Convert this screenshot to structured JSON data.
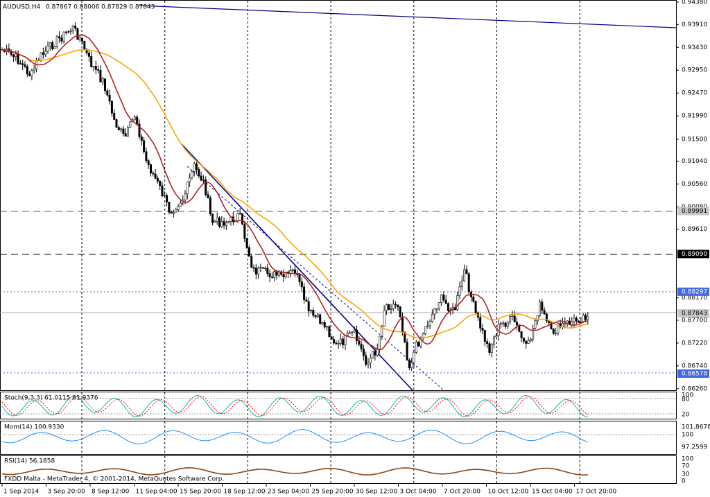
{
  "header": {
    "symbol": "AUDUSD,H4",
    "quote": "0.87867 0.88006 0.87829 0.87843"
  },
  "price_axis": [
    {
      "value": 0.9438,
      "label": "0.94380"
    },
    {
      "value": 0.9391,
      "label": "0.93910"
    },
    {
      "value": 0.9343,
      "label": "0.93430"
    },
    {
      "value": 0.9295,
      "label": "0.92950"
    },
    {
      "value": 0.9247,
      "label": "0.92470"
    },
    {
      "value": 0.9199,
      "label": "0.91990"
    },
    {
      "value": 0.915,
      "label": "0.91500"
    },
    {
      "value": 0.9104,
      "label": "0.91040"
    },
    {
      "value": 0.9056,
      "label": "0.90560"
    },
    {
      "value": 0.9008,
      "label": "0.90080"
    },
    {
      "value": 0.8961,
      "label": "0.89610"
    },
    {
      "value": 0.8817,
      "label": "0.88170"
    },
    {
      "value": 0.877,
      "label": "0.87700"
    },
    {
      "value": 0.8722,
      "label": "0.87220"
    },
    {
      "value": 0.8674,
      "label": "0.86740"
    },
    {
      "value": 0.8626,
      "label": "0.86260"
    }
  ],
  "price_markers": [
    {
      "value": 0.89991,
      "label": "0.89991",
      "style": "grey"
    },
    {
      "value": 0.8909,
      "label": "0.89090",
      "style": "black"
    },
    {
      "value": 0.88297,
      "label": "0.88297",
      "style": "blue"
    },
    {
      "value": 0.87843,
      "label": "0.87843",
      "style": "grey"
    },
    {
      "value": 0.86578,
      "label": "0.86578",
      "style": "blue"
    }
  ],
  "time_axis": [
    "1 Sep 2014",
    "3 Sep 20:00",
    "8 Sep 12:00",
    "11 Sep 04:00",
    "15 Sep 20:00",
    "18 Sep 12:00",
    "23 Sep 04:00",
    "25 Sep 20:00",
    "30 Sep 12:00",
    "3 Oct 04:00",
    "7 Oct 20:00",
    "10 Oct 12:00",
    "15 Oct 04:00",
    "17 Oct 20:00"
  ],
  "indicators": {
    "stoch": {
      "label": "Stoch(9,3,3) 61.0115 61.9376",
      "levels": [
        "100",
        "80",
        "20"
      ]
    },
    "mom": {
      "label": "Mom(14) 100.9330",
      "levels": [
        "101.8678",
        "100",
        "97.2599"
      ]
    },
    "rsi": {
      "label": "RSI(14) 56.1858",
      "levels": [
        "100",
        "70",
        "30",
        "0"
      ]
    }
  },
  "footer": "FXDD Malta - MetaTrader 4, © 2001-2014, MetaQuotes Software Corp."
}
